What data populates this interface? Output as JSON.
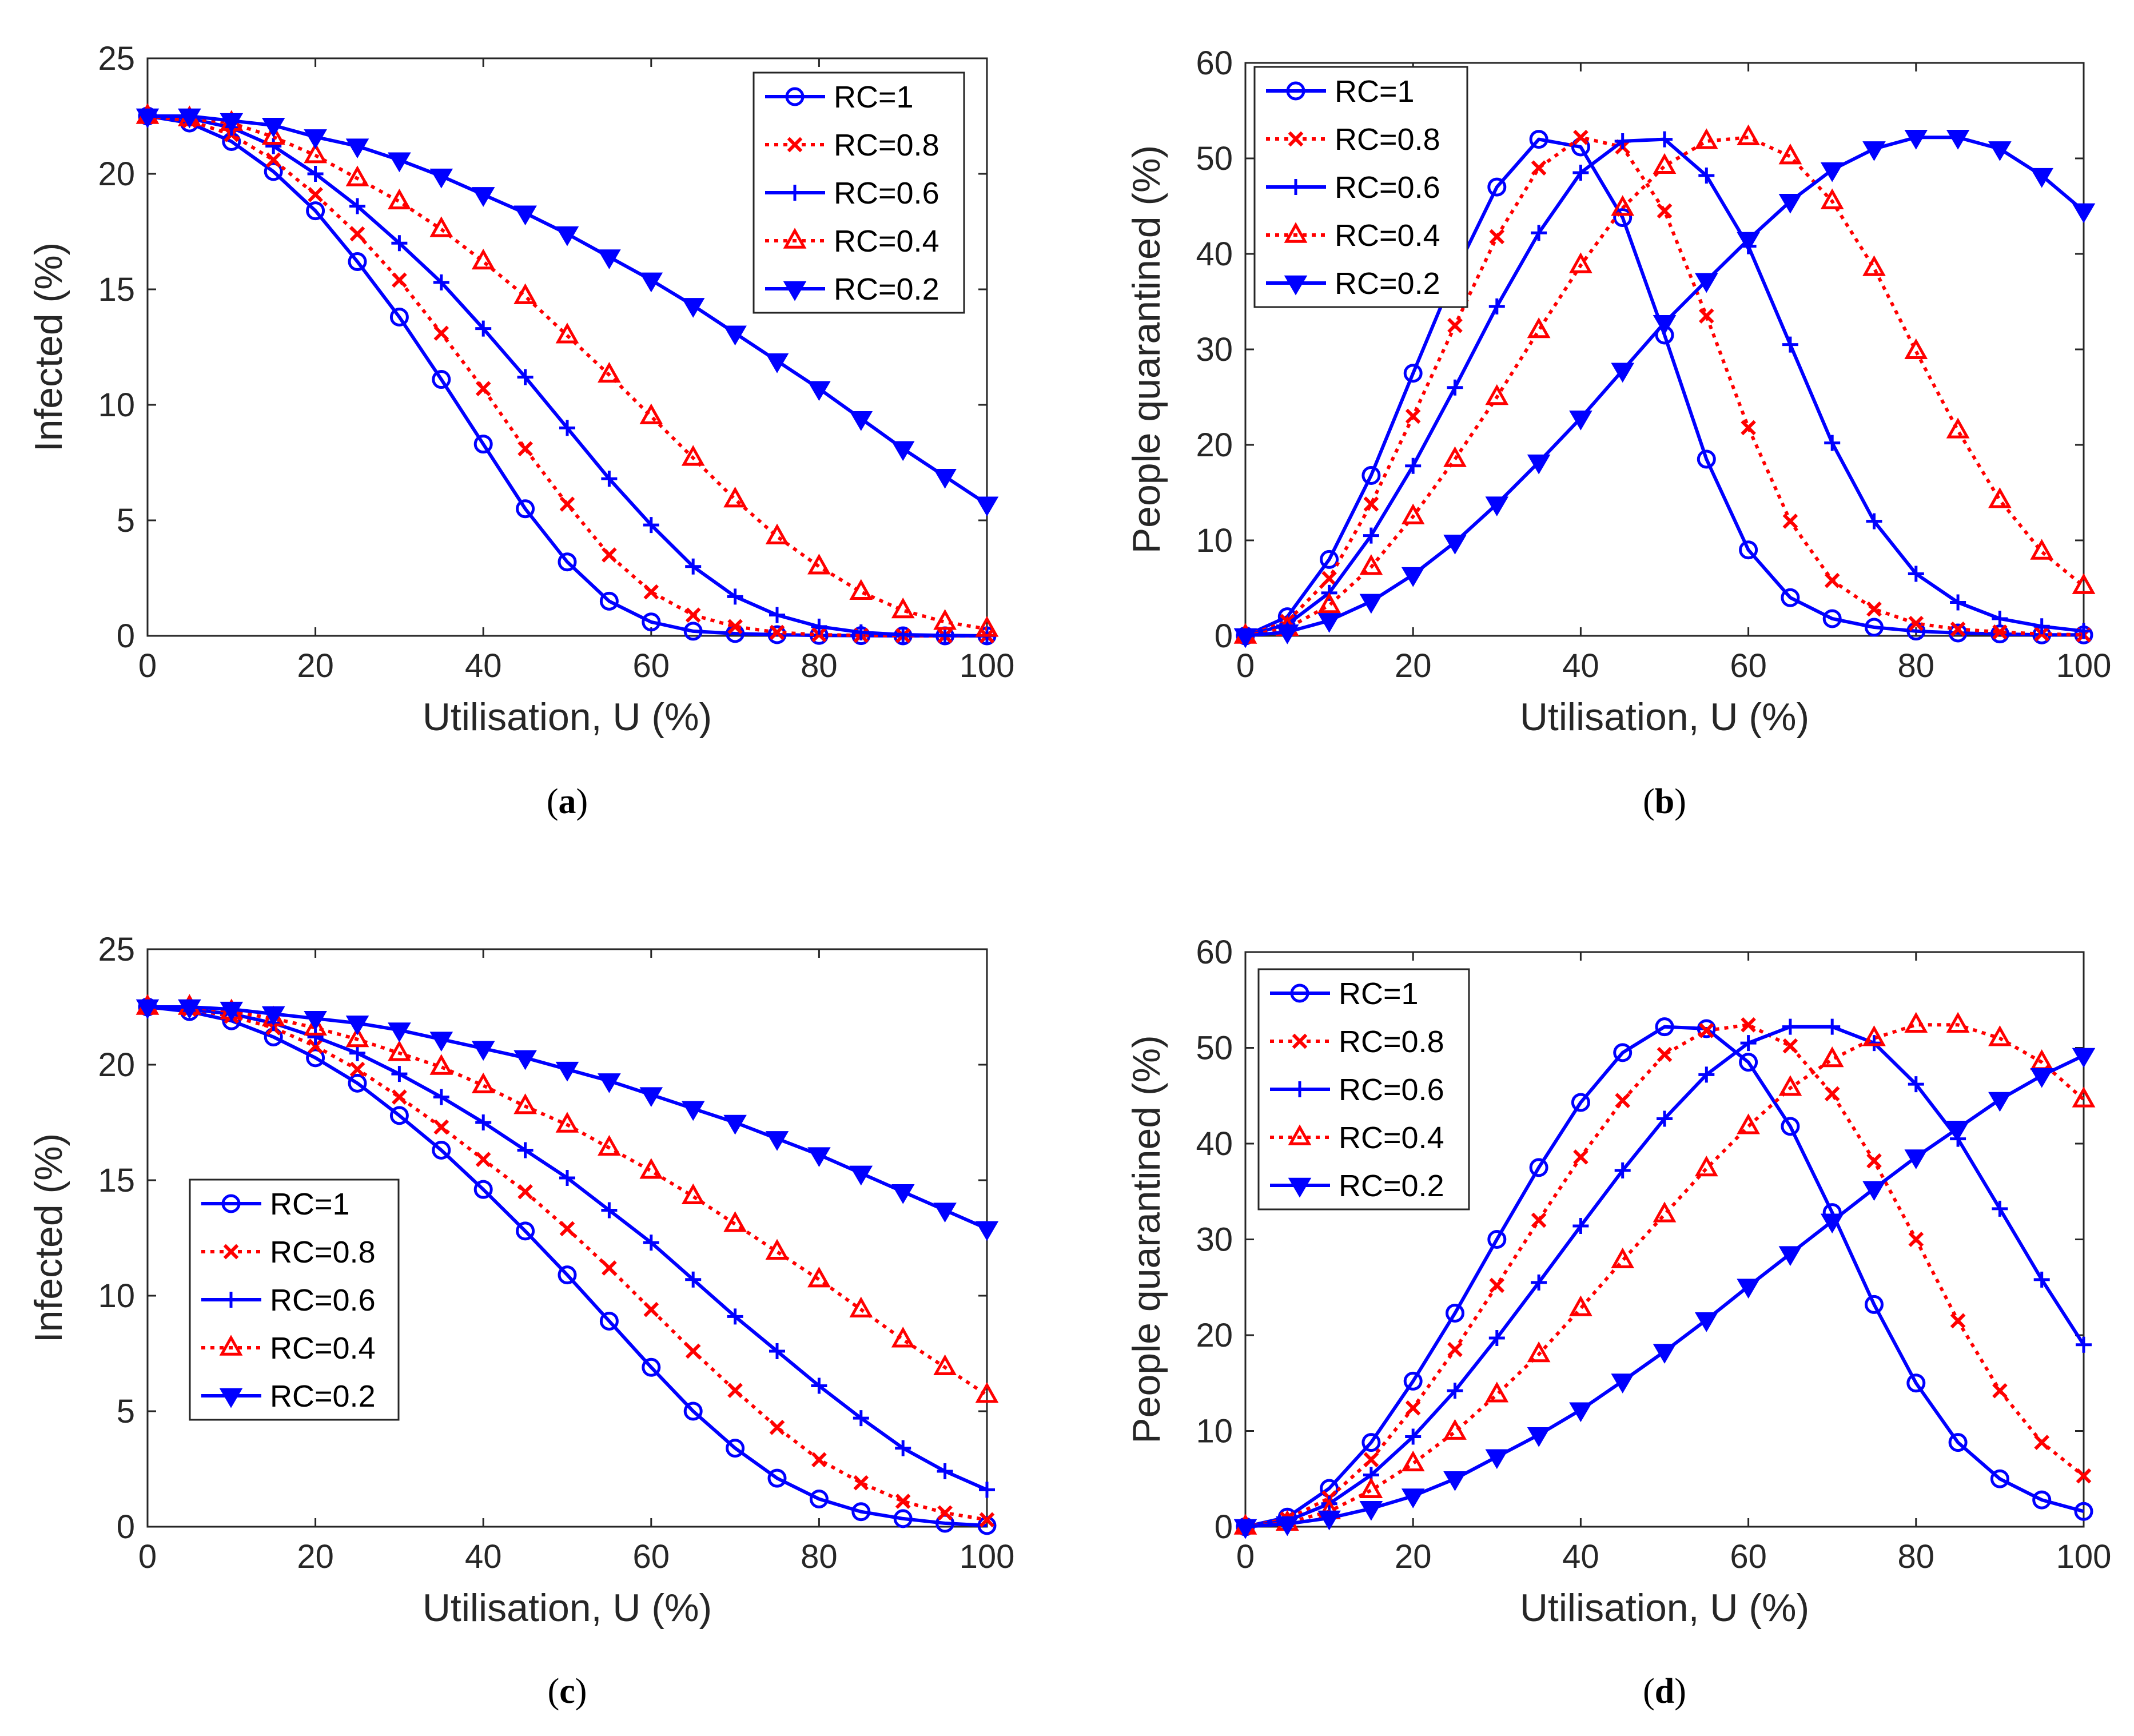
{
  "colors": {
    "blue": "#0000ff",
    "red": "#ff0000",
    "axis": "#262626"
  },
  "chart_data": [
    {
      "id": "a",
      "type": "line",
      "caption": "a",
      "xlabel": "Utilisation, U (%)",
      "ylabel": "Infected (%)",
      "xlim": [
        0,
        100
      ],
      "ylim": [
        0,
        25
      ],
      "xticks": [
        0,
        20,
        40,
        60,
        80,
        100
      ],
      "yticks": [
        0,
        5,
        10,
        15,
        20,
        25
      ],
      "x": [
        0,
        5,
        10,
        15,
        20,
        25,
        30,
        35,
        40,
        45,
        50,
        55,
        60,
        65,
        70,
        75,
        80,
        85,
        90,
        95,
        100
      ],
      "legend_position": "top-right",
      "series": [
        {
          "name": "RC=1",
          "color": "blue",
          "dash": "solid",
          "marker": "circle",
          "values": [
            22.5,
            22.2,
            21.4,
            20.1,
            18.4,
            16.2,
            13.8,
            11.1,
            8.3,
            5.5,
            3.2,
            1.5,
            0.6,
            0.2,
            0.1,
            0.05,
            0.02,
            0.01,
            0,
            0,
            0
          ]
        },
        {
          "name": "RC=0.8",
          "color": "red",
          "dash": "dotted",
          "marker": "x",
          "values": [
            22.5,
            22.3,
            21.7,
            20.6,
            19.1,
            17.4,
            15.4,
            13.1,
            10.7,
            8.1,
            5.7,
            3.5,
            1.9,
            0.9,
            0.4,
            0.15,
            0.05,
            0.02,
            0.01,
            0,
            0
          ]
        },
        {
          "name": "RC=0.6",
          "color": "blue",
          "dash": "solid",
          "marker": "plus",
          "values": [
            22.5,
            22.4,
            22.0,
            21.2,
            20.0,
            18.6,
            17.0,
            15.3,
            13.3,
            11.2,
            9.0,
            6.8,
            4.8,
            3.0,
            1.7,
            0.9,
            0.4,
            0.15,
            0.05,
            0.02,
            0
          ]
        },
        {
          "name": "RC=0.4",
          "color": "red",
          "dash": "dotted",
          "marker": "triangle-up",
          "values": [
            22.5,
            22.4,
            22.2,
            21.6,
            20.8,
            19.8,
            18.8,
            17.6,
            16.2,
            14.7,
            13.0,
            11.3,
            9.5,
            7.7,
            5.9,
            4.3,
            3.0,
            1.9,
            1.1,
            0.6,
            0.3
          ]
        },
        {
          "name": "RC=0.2",
          "color": "blue",
          "dash": "solid",
          "marker": "triangle-down",
          "values": [
            22.5,
            22.5,
            22.3,
            22.1,
            21.6,
            21.2,
            20.6,
            19.9,
            19.1,
            18.3,
            17.4,
            16.4,
            15.4,
            14.3,
            13.1,
            11.9,
            10.7,
            9.4,
            8.1,
            6.9,
            5.7
          ]
        }
      ]
    },
    {
      "id": "b",
      "type": "line",
      "caption": "b",
      "xlabel": "Utilisation, U (%)",
      "ylabel": "People quarantined (%)",
      "xlim": [
        0,
        100
      ],
      "ylim": [
        0,
        60
      ],
      "xticks": [
        0,
        20,
        40,
        60,
        80,
        100
      ],
      "yticks": [
        0,
        10,
        20,
        30,
        40,
        50,
        60
      ],
      "x": [
        0,
        5,
        10,
        15,
        20,
        25,
        30,
        35,
        40,
        45,
        50,
        55,
        60,
        65,
        70,
        75,
        80,
        85,
        90,
        95,
        100
      ],
      "legend_position": "top-left",
      "series": [
        {
          "name": "RC=1",
          "color": "blue",
          "dash": "solid",
          "marker": "circle",
          "values": [
            0,
            2.0,
            8.0,
            16.8,
            27.5,
            38.0,
            47.0,
            52.0,
            51.2,
            43.8,
            31.5,
            18.5,
            9.0,
            4.0,
            1.8,
            0.9,
            0.5,
            0.3,
            0.2,
            0.1,
            0.1
          ]
        },
        {
          "name": "RC=0.8",
          "color": "red",
          "dash": "dotted",
          "marker": "x",
          "values": [
            0,
            1.5,
            6.0,
            13.8,
            23.0,
            32.5,
            41.8,
            49.0,
            52.2,
            51.2,
            44.5,
            33.5,
            21.8,
            12.0,
            5.8,
            2.8,
            1.3,
            0.7,
            0.4,
            0.2,
            0.1
          ]
        },
        {
          "name": "RC=0.6",
          "color": "blue",
          "dash": "solid",
          "marker": "plus",
          "values": [
            0,
            1.2,
            4.5,
            10.5,
            17.8,
            26.0,
            34.5,
            42.2,
            48.5,
            51.8,
            52.0,
            48.2,
            40.8,
            30.5,
            20.2,
            12.0,
            6.5,
            3.5,
            1.8,
            1.0,
            0.5
          ]
        },
        {
          "name": "RC=0.4",
          "color": "red",
          "dash": "dotted",
          "marker": "triangle-up",
          "values": [
            0,
            0.8,
            3.2,
            7.2,
            12.5,
            18.5,
            25.0,
            32.0,
            38.8,
            44.8,
            49.2,
            51.8,
            52.2,
            50.2,
            45.5,
            38.5,
            29.8,
            21.5,
            14.2,
            8.8,
            5.2
          ]
        },
        {
          "name": "RC=0.2",
          "color": "blue",
          "dash": "solid",
          "marker": "triangle-down",
          "values": [
            0,
            0.4,
            1.6,
            3.6,
            6.4,
            9.8,
            13.8,
            18.2,
            22.8,
            27.8,
            32.8,
            37.2,
            41.5,
            45.5,
            48.8,
            51.0,
            52.2,
            52.2,
            51.0,
            48.2,
            44.5
          ]
        }
      ]
    },
    {
      "id": "c",
      "type": "line",
      "caption": "c",
      "xlabel": "Utilisation, U (%)",
      "ylabel": "Infected (%)",
      "xlim": [
        0,
        100
      ],
      "ylim": [
        0,
        25
      ],
      "xticks": [
        0,
        20,
        40,
        60,
        80,
        100
      ],
      "yticks": [
        0,
        5,
        10,
        15,
        20,
        25
      ],
      "x": [
        0,
        5,
        10,
        15,
        20,
        25,
        30,
        35,
        40,
        45,
        50,
        55,
        60,
        65,
        70,
        75,
        80,
        85,
        90,
        95,
        100
      ],
      "legend_position": "bottom-left",
      "series": [
        {
          "name": "RC=1",
          "color": "blue",
          "dash": "solid",
          "marker": "circle",
          "values": [
            22.5,
            22.3,
            21.9,
            21.2,
            20.3,
            19.2,
            17.8,
            16.3,
            14.6,
            12.8,
            10.9,
            8.9,
            6.9,
            5.0,
            3.4,
            2.1,
            1.2,
            0.65,
            0.35,
            0.15,
            0.05
          ]
        },
        {
          "name": "RC=0.8",
          "color": "red",
          "dash": "dotted",
          "marker": "x",
          "values": [
            22.5,
            22.4,
            22.1,
            21.6,
            20.8,
            19.8,
            18.6,
            17.3,
            15.9,
            14.5,
            12.9,
            11.2,
            9.4,
            7.6,
            5.9,
            4.3,
            2.9,
            1.9,
            1.1,
            0.6,
            0.3
          ]
        },
        {
          "name": "RC=0.6",
          "color": "blue",
          "dash": "solid",
          "marker": "plus",
          "values": [
            22.5,
            22.4,
            22.2,
            21.8,
            21.2,
            20.5,
            19.6,
            18.6,
            17.5,
            16.3,
            15.1,
            13.7,
            12.3,
            10.7,
            9.1,
            7.6,
            6.1,
            4.7,
            3.4,
            2.4,
            1.6
          ]
        },
        {
          "name": "RC=0.4",
          "color": "red",
          "dash": "dotted",
          "marker": "triangle-up",
          "values": [
            22.5,
            22.5,
            22.3,
            22.0,
            21.6,
            21.1,
            20.5,
            19.9,
            19.1,
            18.2,
            17.4,
            16.4,
            15.4,
            14.3,
            13.1,
            11.9,
            10.7,
            9.4,
            8.1,
            6.9,
            5.7
          ]
        },
        {
          "name": "RC=0.2",
          "color": "blue",
          "dash": "solid",
          "marker": "triangle-down",
          "values": [
            22.5,
            22.5,
            22.4,
            22.2,
            22.0,
            21.8,
            21.5,
            21.1,
            20.7,
            20.3,
            19.8,
            19.3,
            18.7,
            18.1,
            17.5,
            16.8,
            16.1,
            15.3,
            14.5,
            13.7,
            12.9
          ]
        }
      ]
    },
    {
      "id": "d",
      "type": "line",
      "caption": "d",
      "xlabel": "Utilisation, U (%)",
      "ylabel": "People quarantined (%)",
      "xlim": [
        0,
        100
      ],
      "ylim": [
        0,
        60
      ],
      "xticks": [
        0,
        20,
        40,
        60,
        80,
        100
      ],
      "yticks": [
        0,
        10,
        20,
        30,
        40,
        50,
        60
      ],
      "x": [
        0,
        5,
        10,
        15,
        20,
        25,
        30,
        35,
        40,
        45,
        50,
        55,
        60,
        65,
        70,
        75,
        80,
        85,
        90,
        95,
        100
      ],
      "legend_position": "top-left",
      "series": [
        {
          "name": "RC=1",
          "color": "blue",
          "dash": "solid",
          "marker": "circle",
          "values": [
            0,
            1.0,
            4.0,
            8.8,
            15.2,
            22.3,
            30.0,
            37.5,
            44.3,
            49.5,
            52.2,
            52.0,
            48.5,
            41.8,
            32.8,
            23.2,
            15.0,
            8.8,
            5.0,
            2.8,
            1.6
          ]
        },
        {
          "name": "RC=0.8",
          "color": "red",
          "dash": "dotted",
          "marker": "x",
          "values": [
            0,
            0.8,
            3.0,
            7.0,
            12.4,
            18.5,
            25.2,
            32.0,
            38.6,
            44.5,
            49.3,
            51.8,
            52.4,
            50.2,
            45.2,
            38.2,
            30.0,
            21.5,
            14.2,
            8.8,
            5.3
          ]
        },
        {
          "name": "RC=0.6",
          "color": "blue",
          "dash": "solid",
          "marker": "plus",
          "values": [
            0,
            0.6,
            2.4,
            5.4,
            9.4,
            14.2,
            19.7,
            25.5,
            31.4,
            37.2,
            42.6,
            47.2,
            50.5,
            52.2,
            52.2,
            50.5,
            46.2,
            40.5,
            33.2,
            25.8,
            19.0
          ]
        },
        {
          "name": "RC=0.4",
          "color": "red",
          "dash": "dotted",
          "marker": "triangle-up",
          "values": [
            0,
            0.4,
            1.6,
            3.8,
            6.6,
            9.9,
            13.8,
            18.0,
            22.8,
            27.8,
            32.6,
            37.4,
            41.8,
            45.8,
            48.8,
            51.0,
            52.4,
            52.4,
            51.0,
            48.5,
            44.6
          ]
        },
        {
          "name": "RC=0.2",
          "color": "blue",
          "dash": "solid",
          "marker": "triangle-down",
          "values": [
            0,
            0.3,
            0.9,
            1.9,
            3.2,
            5.0,
            7.3,
            9.6,
            12.2,
            15.2,
            18.3,
            21.6,
            25.1,
            28.5,
            31.9,
            35.3,
            38.6,
            41.6,
            44.6,
            47.1,
            49.2
          ]
        }
      ]
    }
  ]
}
